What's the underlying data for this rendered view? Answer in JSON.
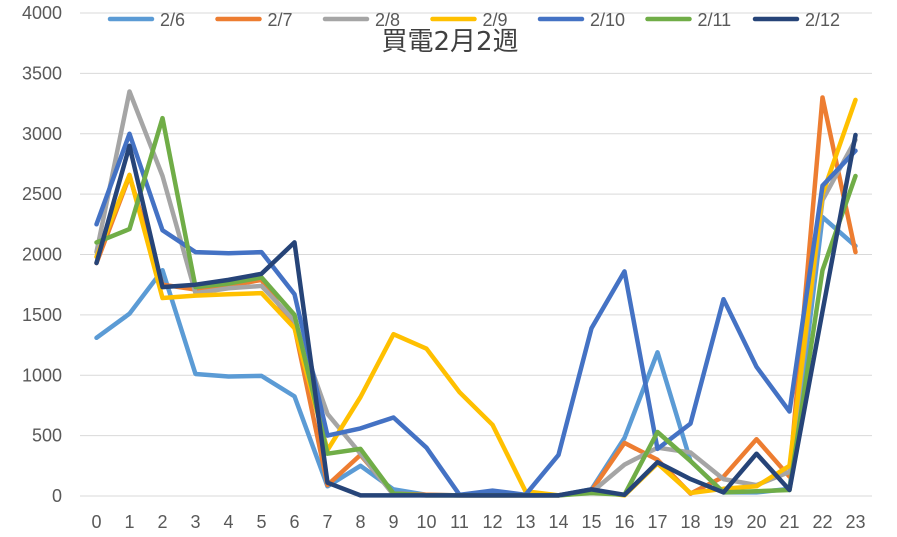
{
  "chart_data": {
    "type": "line",
    "title": "買電2月2週",
    "xlabel": "",
    "ylabel": "",
    "x": [
      "0",
      "1",
      "2",
      "3",
      "4",
      "5",
      "6",
      "7",
      "8",
      "9",
      "10",
      "11",
      "12",
      "13",
      "14",
      "15",
      "16",
      "17",
      "18",
      "19",
      "20",
      "21",
      "22",
      "23"
    ],
    "ylim": [
      0,
      4000
    ],
    "yticks": [
      "0",
      "500",
      "1000",
      "1500",
      "2000",
      "2500",
      "3000",
      "3500",
      "4000"
    ],
    "grid": true,
    "legend_position": "top",
    "series": [
      {
        "name": "2/6",
        "color": "#5b9bd5",
        "values": [
          1310,
          1510,
          1870,
          1010,
          990,
          995,
          825,
          80,
          250,
          55,
          10,
          5,
          5,
          5,
          5,
          55,
          480,
          1190,
          290,
          30,
          30,
          60,
          2310,
          2070
        ]
      },
      {
        "name": "2/7",
        "color": "#ed7d31",
        "values": [
          1930,
          2650,
          1750,
          1710,
          1740,
          1790,
          1400,
          90,
          340,
          20,
          10,
          5,
          5,
          5,
          5,
          45,
          440,
          300,
          20,
          160,
          470,
          160,
          3300,
          2020
        ]
      },
      {
        "name": "2/8",
        "color": "#a5a5a5",
        "values": [
          2020,
          3350,
          2650,
          1680,
          1720,
          1740,
          1450,
          680,
          350,
          10,
          5,
          5,
          5,
          5,
          5,
          30,
          260,
          400,
          360,
          140,
          90,
          200,
          2450,
          2950
        ]
      },
      {
        "name": "2/9",
        "color": "#ffc000",
        "values": [
          1980,
          2660,
          1640,
          1660,
          1670,
          1680,
          1390,
          380,
          820,
          1340,
          1220,
          860,
          590,
          40,
          5,
          40,
          5,
          270,
          25,
          60,
          80,
          250,
          2500,
          3280
        ]
      },
      {
        "name": "2/10",
        "color": "#4472c4",
        "values": [
          2250,
          3000,
          2200,
          2020,
          2010,
          2020,
          1670,
          500,
          560,
          650,
          400,
          10,
          45,
          10,
          340,
          1390,
          1860,
          390,
          600,
          1630,
          1070,
          700,
          2570,
          2860
        ]
      },
      {
        "name": "2/11",
        "color": "#70ad47",
        "values": [
          2100,
          2210,
          3130,
          1730,
          1760,
          1810,
          1500,
          350,
          390,
          20,
          5,
          5,
          5,
          5,
          5,
          25,
          10,
          530,
          290,
          30,
          40,
          50,
          1870,
          2650
        ]
      },
      {
        "name": "2/12",
        "color": "#264478",
        "values": [
          1930,
          2900,
          1730,
          1750,
          1790,
          1840,
          2100,
          110,
          5,
          5,
          5,
          5,
          5,
          5,
          5,
          55,
          10,
          280,
          140,
          30,
          350,
          50,
          1530,
          2990
        ]
      }
    ]
  }
}
